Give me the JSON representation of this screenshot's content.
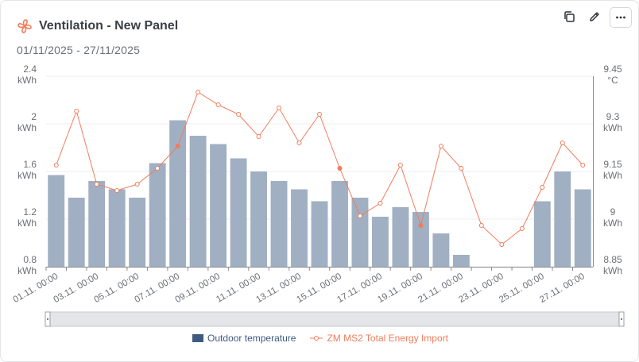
{
  "header": {
    "title": "Ventilation - New Panel",
    "date_range": "01/11/2025 - 27/11/2025",
    "copy_icon": "copy-icon",
    "edit_icon": "pencil-icon",
    "more_icon": "more-horizontal-icon"
  },
  "colors": {
    "bar": "#a1afc3",
    "bar_legend": "#3e5a80",
    "line": "#ef7d5c",
    "grid": "#eceef1",
    "axis": "#888c91"
  },
  "chart_data": {
    "type": "bar+line",
    "categories": [
      "01.11. 00:00",
      "02.11. 00:00",
      "03.11. 00:00",
      "04.11. 00:00",
      "05.11. 00:00",
      "06.11. 00:00",
      "07.11. 00:00",
      "08.11. 00:00",
      "09.11. 00:00",
      "10.11. 00:00",
      "11.11. 00:00",
      "12.11. 00:00",
      "13.11. 00:00",
      "14.11. 00:00",
      "15.11. 00:00",
      "16.11. 00:00",
      "17.11. 00:00",
      "18.11. 00:00",
      "19.11. 00:00",
      "20.11. 00:00",
      "21.11. 00:00",
      "22.11. 00:00",
      "23.11. 00:00",
      "24.11. 00:00",
      "25.11. 00:00",
      "26.11. 00:00",
      "27.11. 00:00"
    ],
    "xtick_labels": [
      "01.11. 00:00",
      "03.11. 00:00",
      "05.11. 00:00",
      "07.11. 00:00",
      "09.11. 00:00",
      "11.11. 00:00",
      "13.11. 00:00",
      "15.11. 00:00",
      "17.11. 00:00",
      "19.11. 00:00",
      "21.11. 00:00",
      "23.11. 00:00",
      "25.11. 00:00",
      "27.11. 00:00"
    ],
    "bar_series": {
      "name": "Outdoor temperature",
      "axis": "left",
      "values": [
        1.57,
        1.38,
        1.52,
        1.45,
        1.38,
        1.67,
        2.03,
        1.9,
        1.83,
        1.71,
        1.6,
        1.52,
        1.45,
        1.35,
        1.52,
        1.38,
        1.22,
        1.3,
        1.26,
        1.08,
        0.9,
        null,
        null,
        null,
        1.35,
        1.6,
        1.45
      ]
    },
    "line_series": {
      "name": "ZM MS2 Total Energy Import",
      "axis": "right",
      "values": [
        9.17,
        9.34,
        9.11,
        9.09,
        9.11,
        9.16,
        9.23,
        9.4,
        9.36,
        9.33,
        9.26,
        9.35,
        9.24,
        9.33,
        9.16,
        9.01,
        9.05,
        9.17,
        8.98,
        9.23,
        9.16,
        8.98,
        8.92,
        8.97,
        9.1,
        9.24,
        9.17
      ],
      "marked_points": [
        6,
        14,
        18
      ]
    },
    "left_axis": {
      "ticks": [
        2.4,
        2,
        1.6,
        1.2,
        0.8
      ],
      "tick_labels": [
        "2.4",
        "2",
        "1.6",
        "1.2",
        "0.8"
      ],
      "unit": "kWh",
      "range": [
        0.8,
        2.4
      ]
    },
    "right_axis": {
      "ticks": [
        9.45,
        9.3,
        9.15,
        9,
        8.85
      ],
      "tick_labels": [
        "9.45",
        "9.3",
        "9.15",
        "9",
        "8.85"
      ],
      "top_unit": "°C",
      "unit": "kWh",
      "range": [
        8.85,
        9.45
      ]
    },
    "grid": true,
    "legend": "bottom-center"
  }
}
